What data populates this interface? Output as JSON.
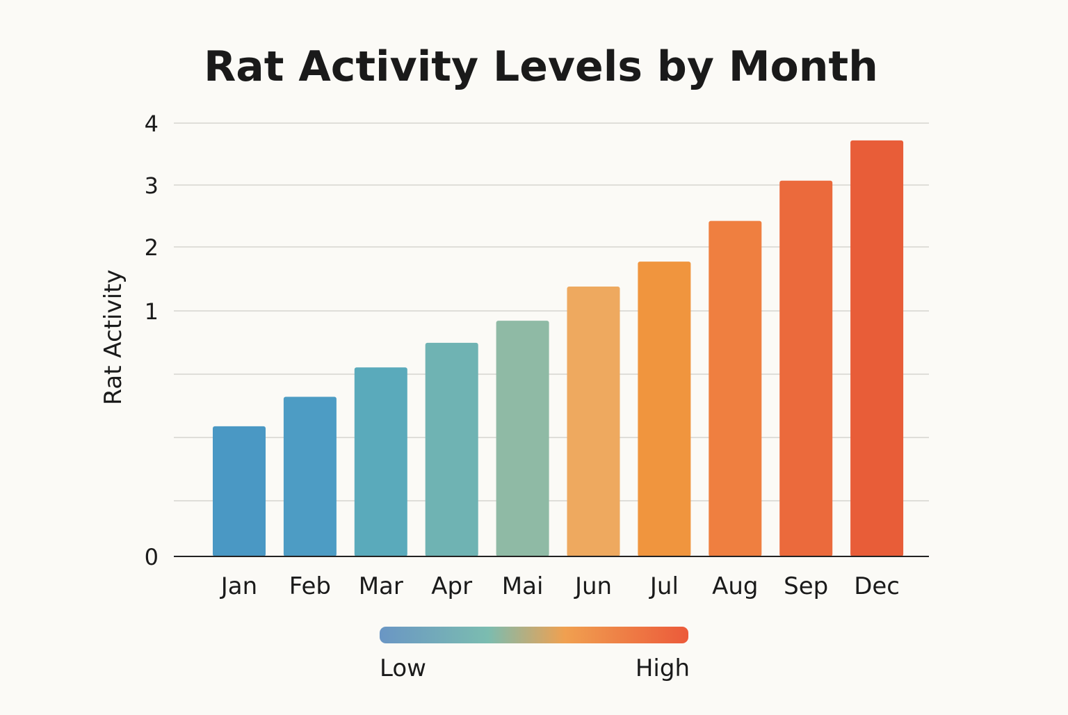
{
  "chart_data": {
    "type": "bar",
    "title": "Rat Activity Levels by Month",
    "xlabel": "",
    "ylabel": "Rat Activity",
    "y_ticks": [
      0,
      1,
      2,
      3,
      4
    ],
    "ylim": [
      0,
      4
    ],
    "grid": true,
    "categories": [
      "Jan",
      "Feb",
      "Mar",
      "Apr",
      "Mai",
      "Jun",
      "Jul",
      "Aug",
      "Sep",
      "Dec"
    ],
    "values": [
      0.53,
      0.65,
      0.77,
      0.87,
      0.96,
      1.38,
      1.77,
      2.42,
      3.07,
      3.72
    ],
    "colors": [
      "#4a98c4",
      "#4d9cc4",
      "#5aaabb",
      "#6fb3b3",
      "#8fbaa5",
      "#eea95f",
      "#f0953e",
      "#ef7f40",
      "#eb6a3c",
      "#e85d38"
    ],
    "legend": {
      "type": "color-gradient",
      "placement": "bottom",
      "low_label": "Low",
      "high_label": "High",
      "gradient_colors": [
        "#6a96c4",
        "#7bbcb0",
        "#f0a050",
        "#ec5a3a"
      ]
    }
  }
}
